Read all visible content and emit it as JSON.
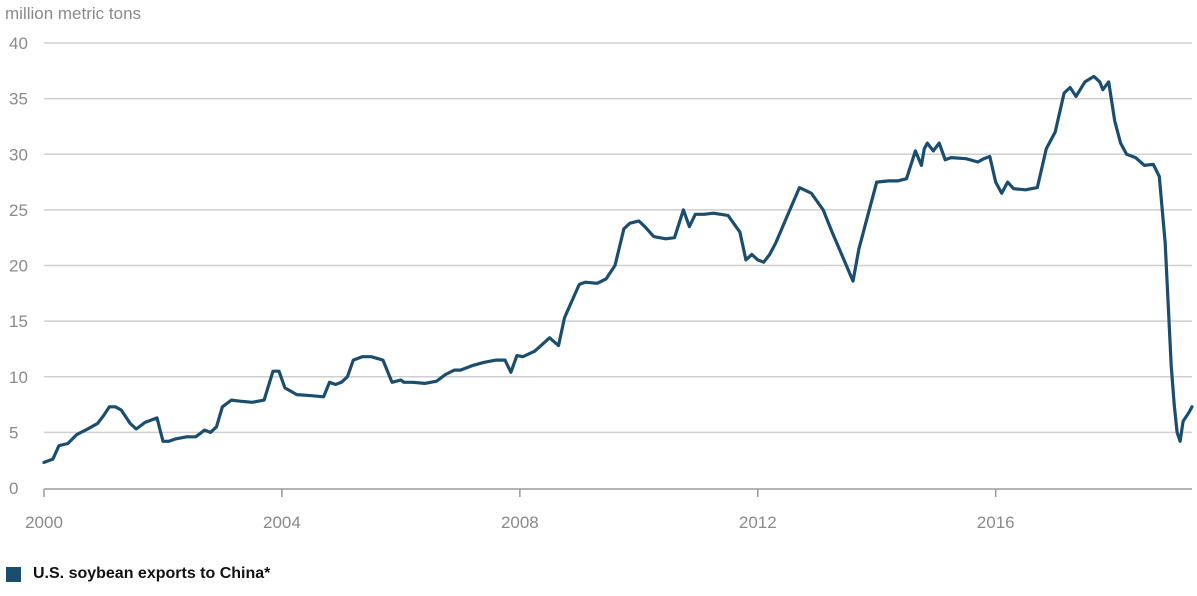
{
  "chart_data": {
    "type": "line",
    "title": "",
    "xlabel": "",
    "ylabel": "million metric tons",
    "xlim": [
      2000.0,
      2019.3
    ],
    "ylim": [
      0,
      40
    ],
    "x_ticks": [
      2000,
      2004,
      2008,
      2012,
      2016
    ],
    "x_tick_labels": [
      "2000",
      "2004",
      "2008",
      "2012",
      "2016"
    ],
    "y_ticks": [
      0,
      5,
      10,
      15,
      20,
      25,
      30,
      35,
      40
    ],
    "y_tick_labels": [
      "0",
      "5",
      "10",
      "15",
      "20",
      "25",
      "30",
      "35",
      "40"
    ],
    "grid": "horizontal",
    "legend_position": "bottom-left",
    "series": [
      {
        "name": "U.S. soybean exports to China*",
        "color": "#1b4e6e",
        "x": [
          2000.0,
          2000.15,
          2000.25,
          2000.4,
          2000.55,
          2000.7,
          2000.8,
          2000.9,
          2001.0,
          2001.1,
          2001.2,
          2001.3,
          2001.45,
          2001.55,
          2001.7,
          2001.8,
          2001.9,
          2002.0,
          2002.1,
          2002.2,
          2002.3,
          2002.4,
          2002.55,
          2002.7,
          2002.8,
          2002.9,
          2003.0,
          2003.15,
          2003.3,
          2003.5,
          2003.7,
          2003.85,
          2003.95,
          2004.05,
          2004.25,
          2004.5,
          2004.7,
          2004.8,
          2004.9,
          2005.0,
          2005.1,
          2005.2,
          2005.35,
          2005.5,
          2005.7,
          2005.85,
          2006.0,
          2006.05,
          2006.2,
          2006.4,
          2006.6,
          2006.75,
          2006.9,
          2007.0,
          2007.2,
          2007.4,
          2007.6,
          2007.75,
          2007.85,
          2007.95,
          2008.05,
          2008.25,
          2008.5,
          2008.65,
          2008.75,
          2008.85,
          2009.0,
          2009.1,
          2009.3,
          2009.45,
          2009.6,
          2009.75,
          2009.85,
          2010.0,
          2010.1,
          2010.25,
          2010.45,
          2010.6,
          2010.75,
          2010.85,
          2010.95,
          2011.1,
          2011.25,
          2011.5,
          2011.7,
          2011.8,
          2011.9,
          2012.0,
          2012.1,
          2012.2,
          2012.3,
          2012.5,
          2012.7,
          2012.9,
          2013.1,
          2013.25,
          2013.45,
          2013.6,
          2013.7,
          2013.75,
          2013.8,
          2013.85,
          2014.0,
          2014.2,
          2014.35,
          2014.5,
          2014.65,
          2014.75,
          2014.8,
          2014.85,
          2014.95,
          2015.05,
          2015.15,
          2015.25,
          2015.5,
          2015.7,
          2015.8,
          2015.9,
          2016.0,
          2016.1,
          2016.2,
          2016.3,
          2016.5,
          2016.7,
          2016.85,
          2017.0,
          2017.15,
          2017.25,
          2017.35,
          2017.5,
          2017.65,
          2017.75,
          2017.8,
          2017.9,
          2018.0,
          2018.1,
          2018.2,
          2018.35,
          2018.5,
          2018.65,
          2018.75,
          2018.85,
          2018.95,
          2019.0,
          2019.05,
          2019.1,
          2019.15,
          2019.25,
          2019.3
        ],
        "y": [
          2.3,
          2.6,
          3.8,
          4.0,
          4.8,
          5.2,
          5.5,
          5.8,
          6.5,
          7.3,
          7.3,
          7.0,
          5.8,
          5.3,
          5.9,
          6.1,
          6.3,
          4.2,
          4.2,
          4.4,
          4.5,
          4.6,
          4.6,
          5.2,
          5.0,
          5.5,
          7.3,
          7.9,
          7.8,
          7.7,
          7.9,
          10.5,
          10.5,
          9.0,
          8.4,
          8.3,
          8.2,
          9.5,
          9.3,
          9.5,
          10.0,
          11.5,
          11.8,
          11.8,
          11.5,
          9.5,
          9.7,
          9.5,
          9.5,
          9.4,
          9.6,
          10.2,
          10.6,
          10.6,
          11.0,
          11.3,
          11.5,
          11.5,
          10.4,
          11.9,
          11.8,
          12.3,
          13.5,
          12.8,
          15.3,
          16.5,
          18.3,
          18.5,
          18.4,
          18.8,
          20.0,
          23.3,
          23.8,
          24.0,
          23.5,
          22.6,
          22.4,
          22.5,
          25.0,
          23.5,
          24.6,
          24.6,
          24.7,
          24.5,
          23.0,
          20.5,
          21.0,
          20.5,
          20.3,
          21.0,
          22.0,
          24.5,
          27.0,
          26.5,
          25.0,
          23.0,
          20.5,
          18.6,
          21.5,
          22.5,
          23.5,
          24.5,
          27.5,
          27.6,
          27.6,
          27.8,
          30.3,
          29.0,
          30.5,
          31.0,
          30.3,
          31.0,
          29.5,
          29.7,
          29.6,
          29.3,
          29.6,
          29.8,
          27.5,
          26.5,
          27.5,
          26.9,
          26.8,
          27.0,
          30.5,
          32.0,
          35.5,
          36.0,
          35.2,
          36.5,
          37.0,
          36.5,
          35.8,
          36.5,
          33.0,
          31.0,
          30.0,
          29.7,
          29.0,
          29.1,
          28.0,
          22.0,
          11.0,
          7.5,
          5.0,
          4.2,
          6.0,
          6.8,
          7.3
        ]
      }
    ]
  }
}
